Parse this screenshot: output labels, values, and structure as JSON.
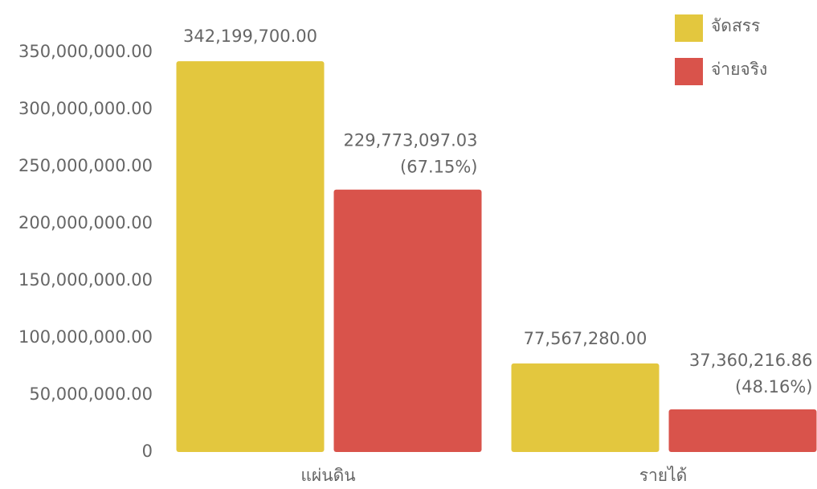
{
  "chart_data": {
    "type": "bar",
    "categories": [
      "แผ่นดิน",
      "รายได้"
    ],
    "series": [
      {
        "name": "จัดสรร",
        "color": "#e3c73e",
        "values": [
          342199700.0,
          77567280.0
        ],
        "value_labels": [
          "342,199,700.00",
          "77,567,280.00"
        ]
      },
      {
        "name": "จ่ายจริง",
        "color": "#d9534b",
        "values": [
          229773097.03,
          37360216.86
        ],
        "value_labels": [
          "229,773,097.03",
          "37,360,216.86"
        ],
        "share_labels": [
          "(67.15%)",
          "(48.16%)"
        ]
      }
    ],
    "ylim": [
      0,
      350000000
    ],
    "yticks": [
      0,
      {
        "value": 50000000,
        "label": "50,000,000.00"
      },
      {
        "value": 100000000,
        "label": "100,000,000.00"
      },
      {
        "value": 150000000,
        "label": "150,000,000.00"
      },
      {
        "value": 200000000,
        "label": "200,000,000.00"
      },
      {
        "value": 250000000,
        "label": "250,000,000.00"
      },
      {
        "value": 300000000,
        "label": "300,000,000.00"
      },
      {
        "value": 350000000,
        "label": "350,000,000.00"
      }
    ],
    "grid": false,
    "legend": "top-right"
  }
}
